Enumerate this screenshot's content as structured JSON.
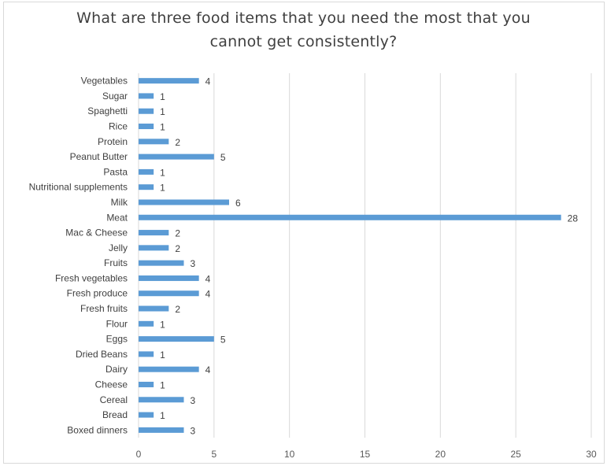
{
  "chart_data": {
    "type": "bar",
    "orientation": "horizontal",
    "title": "What are three food items that you need the most that you cannot get consistently?",
    "xlabel": "",
    "ylabel": "",
    "xlim": [
      0,
      30
    ],
    "xticks": [
      0,
      5,
      10,
      15,
      20,
      25,
      30
    ],
    "grid": "vertical",
    "legend": "none",
    "bar_color": "#5b9bd5",
    "categories": [
      "Vegetables",
      "Sugar",
      "Spaghetti",
      "Rice",
      "Protein",
      "Peanut Butter",
      "Pasta",
      "Nutritional supplements",
      "Milk",
      "Meat",
      "Mac & Cheese",
      "Jelly",
      "Fruits",
      "Fresh vegetables",
      "Fresh produce",
      "Fresh fruits",
      "Flour",
      "Eggs",
      "Dried Beans",
      "Dairy",
      "Cheese",
      "Cereal",
      "Bread",
      "Boxed dinners"
    ],
    "values": [
      4,
      1,
      1,
      1,
      2,
      5,
      1,
      1,
      6,
      28,
      2,
      2,
      3,
      4,
      4,
      2,
      1,
      5,
      1,
      4,
      1,
      3,
      1,
      3
    ]
  }
}
